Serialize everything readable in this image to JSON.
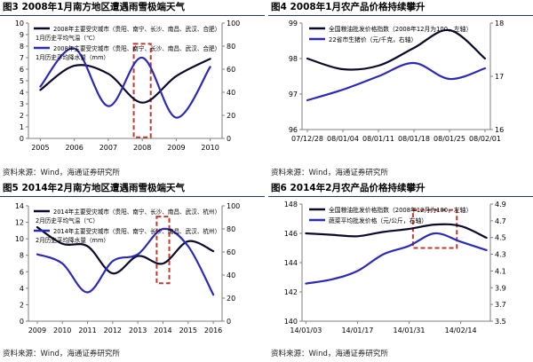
{
  "panels": [
    {
      "title": "图3  2008年1月南方地区遭遇雨雪极端天气",
      "source": "资料来源：Wind，海通证券研究所"
    },
    {
      "title": "图4  2008年1月农产品价格持续攀升",
      "source": "资料来源：Wind，海通证券研究所"
    },
    {
      "title": "图5  2014年2月南方地区遭遇雨雪极端天气",
      "source": "资料来源：Wind，海通证券研究所"
    },
    {
      "title": "图6  2014年2月农产品价格持续攀升",
      "source": "资料来源：Wind，海通证券研究所"
    }
  ],
  "colors": {
    "series_a": "#0a0a2a",
    "series_b": "#2a2ab8",
    "highlight": "#c0392b",
    "title_rule": "#1f3864",
    "axis": "#7f7f7f"
  },
  "chart_data": [
    {
      "type": "line",
      "x": [
        2005,
        2006,
        2007,
        2008,
        2009,
        2010
      ],
      "xticks": [
        "2005",
        "2006",
        "2007",
        "2008",
        "2009",
        "2010"
      ],
      "series": [
        {
          "name": "2008年主要受灾城市（贵阳、南宁、长沙、南昌、武汉、合肥）1月历史平均气温（℃）",
          "axis": "left",
          "values": [
            4.2,
            6.3,
            5.6,
            3.1,
            5.4,
            6.9
          ]
        },
        {
          "name": "2008年主要受灾城市（贵阳、南宁、长沙、南昌、武汉、合肥）1月历史平均降水量（mm）",
          "axis": "right",
          "values": [
            45,
            78,
            28,
            70,
            18,
            62
          ]
        }
      ],
      "ylim_left": [
        0,
        10
      ],
      "yticks_left": [
        0,
        1,
        2,
        3,
        4,
        5,
        6,
        7,
        8,
        9,
        10
      ],
      "ylim_right": [
        0,
        100
      ],
      "yticks_right": [
        0,
        20,
        40,
        60,
        80,
        100
      ],
      "highlight": {
        "x_from": 2007.75,
        "x_to": 2008.25,
        "y_from": 0.1,
        "y_to": 8.2
      }
    },
    {
      "type": "line",
      "x": [
        "07/12/28",
        "08/01/04",
        "08/01/11",
        "08/01/18",
        "08/01/25",
        "08/02/01"
      ],
      "xticks": [
        "07/12/28",
        "08/01/04",
        "08/01/11",
        "08/01/18",
        "08/01/25",
        "08/02/01"
      ],
      "series": [
        {
          "name": "全国粮油批发价格指数（2008年12月为100，左轴）",
          "axis": "left",
          "values": [
            98.0,
            97.7,
            97.8,
            98.3,
            98.8,
            98.0
          ]
        },
        {
          "name": "22省市生猪价（元/千克，右轴）",
          "axis": "right",
          "values": [
            16.55,
            16.75,
            17.0,
            17.25,
            16.95,
            17.15
          ]
        }
      ],
      "ylim_left": [
        96,
        99
      ],
      "yticks_left": [
        96,
        97,
        98,
        99
      ],
      "ylim_right": [
        16,
        18
      ],
      "yticks_right": [
        16,
        17,
        18
      ]
    },
    {
      "type": "line",
      "x": [
        2009,
        2010,
        2011,
        2012,
        2013,
        2014,
        2015,
        2016
      ],
      "xticks": [
        "2009",
        "2010",
        "2011",
        "2012",
        "2013",
        "2014",
        "2015",
        "2016"
      ],
      "series": [
        {
          "name": "2014年主要受灾城市（贵阳、南宁、长沙、南昌、武汉、杭州）2月历史平均气温（℃）",
          "axis": "left",
          "values": [
            11.4,
            9.4,
            9.1,
            5.8,
            7.9,
            7.0,
            9.7,
            8.5
          ]
        },
        {
          "name": "2014年主要受灾城市（贵阳、南宁、长沙、南昌、武汉、杭州）2月历史平均降水量（mm）",
          "axis": "right",
          "values": [
            58,
            50,
            25,
            52,
            58,
            80,
            65,
            23
          ]
        }
      ],
      "ylim_left": [
        0,
        14
      ],
      "yticks_left": [
        0,
        2,
        4,
        6,
        8,
        10,
        12,
        14
      ],
      "ylim_right": [
        0,
        100
      ],
      "yticks_right": [
        0,
        20,
        40,
        60,
        80,
        100
      ],
      "highlight": {
        "x_from": 2013.75,
        "x_to": 2014.25,
        "y_from": 4.6,
        "y_to": 12.7
      }
    },
    {
      "type": "line",
      "x": [
        "14/01/03",
        "14/01/10",
        "14/01/17",
        "14/01/24",
        "14/01/31",
        "14/02/07",
        "14/02/14",
        "14/02/21"
      ],
      "xticks": [
        "14/01/03",
        "14/01/17",
        "14/01/31",
        "14/02/14"
      ],
      "series": [
        {
          "name": "全国粮油批发价格指数（2008年12月为100，左轴）",
          "axis": "left",
          "values": [
            146.0,
            145.9,
            145.8,
            146.1,
            146.3,
            146.6,
            146.5,
            145.7
          ]
        },
        {
          "name": "蔬菜平均批发价格（元/公斤，右轴）",
          "axis": "right",
          "values": [
            3.95,
            4.0,
            4.1,
            4.3,
            4.4,
            4.55,
            4.45,
            4.35
          ]
        }
      ],
      "ylim_left": [
        140,
        148
      ],
      "yticks_left": [
        140,
        142,
        144,
        146,
        148
      ],
      "ylim_right": [
        3.5,
        4.9
      ],
      "yticks_right": [
        "3.5",
        "3.7",
        "3.9",
        "4.1",
        "4.3",
        "4.5",
        "4.7",
        "4.9"
      ],
      "highlight": {
        "x_from": 4.15,
        "x_to": 5.85,
        "y_from": 145.0,
        "y_to": 147.6
      }
    }
  ]
}
